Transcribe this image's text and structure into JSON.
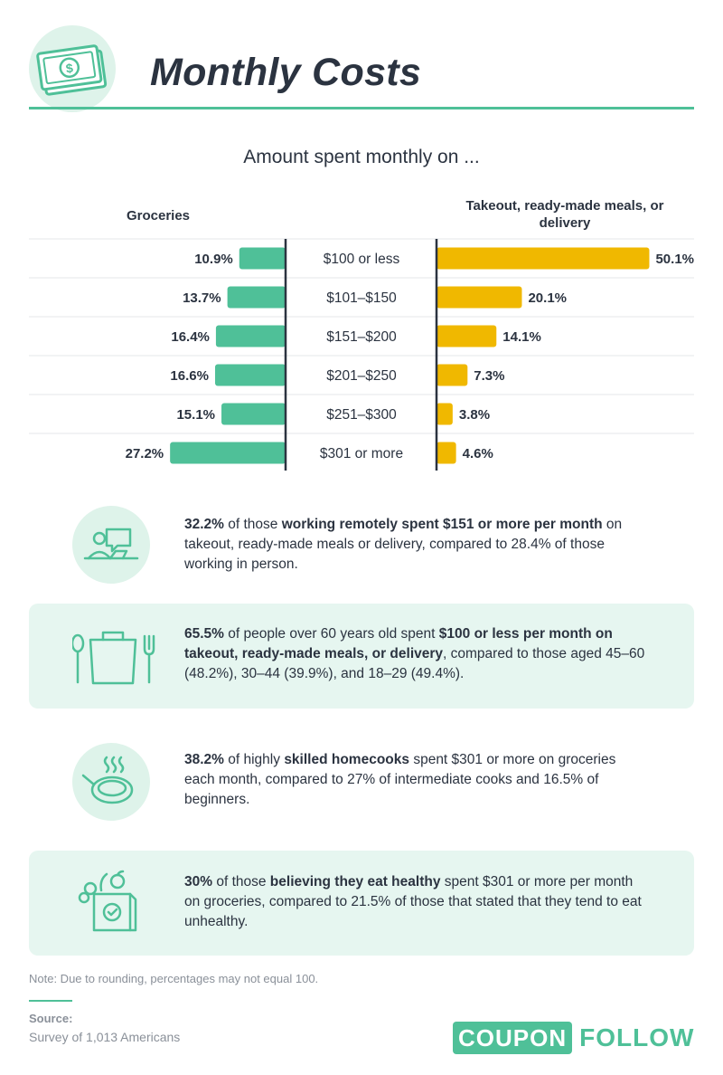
{
  "header": {
    "title": "Monthly Costs",
    "icon": "money-bills-icon"
  },
  "colors": {
    "groceries": "#4fc098",
    "takeout": "#f0b800",
    "accent": "#4fc098",
    "panel": "#e6f6f0",
    "text": "#2b3340"
  },
  "chart_data": {
    "type": "bar",
    "title": "Amount spent monthly on ...",
    "categories": [
      "$100 or less",
      "$101–$150",
      "$151–$200",
      "$201–$250",
      "$251–$300",
      "$301 or more"
    ],
    "series": [
      {
        "name": "Groceries",
        "values": [
          10.9,
          13.7,
          16.4,
          16.6,
          15.1,
          27.2
        ],
        "labels": [
          "10.9%",
          "13.7%",
          "16.4%",
          "16.6%",
          "15.1%",
          "27.2%"
        ]
      },
      {
        "name": "Takeout, ready-made meals, or delivery",
        "values": [
          50.1,
          20.1,
          14.1,
          7.3,
          3.8,
          4.6
        ],
        "labels": [
          "50.1%",
          "20.1%",
          "14.1%",
          "7.3%",
          "3.8%",
          "4.6%"
        ]
      }
    ],
    "unit": "%",
    "layout": "back-to-back horizontal bars",
    "grid": true
  },
  "facts": [
    {
      "icon": "remote-worker-icon",
      "html": "<b>32.2%</b> of those <b>working remotely spent $151 or more per month</b> on takeout, ready-made meals or delivery, compared to 28.4% of those working in person."
    },
    {
      "icon": "takeout-bag-icon",
      "html": "<b>65.5%</b> of people over 60 years old spent <b>$100 or less per month on takeout, ready-made meals, or delivery</b>, compared to those aged 45–60 (48.2%), 30–44 (39.9%), and 18–29 (49.4%)."
    },
    {
      "icon": "frying-pan-icon",
      "html": "<b>38.2%</b> of highly <b>skilled homecooks</b> spent $301 or more on groceries each month, compared to 27% of intermediate cooks and 16.5% of beginners."
    },
    {
      "icon": "grocery-bag-icon",
      "html": "<b>30%</b> of those <b>believing they eat healthy</b> spent $301 or more per month on groceries, compared to 21.5% of those that stated that they tend to eat unhealthy."
    }
  ],
  "footer": {
    "note": "Note: Due to rounding, percentages may not equal 100.",
    "source_label": "Source:",
    "source_text": "Survey of 1,013 Americans",
    "logo_box": "COUPON",
    "logo_text": "FOLLOW"
  }
}
